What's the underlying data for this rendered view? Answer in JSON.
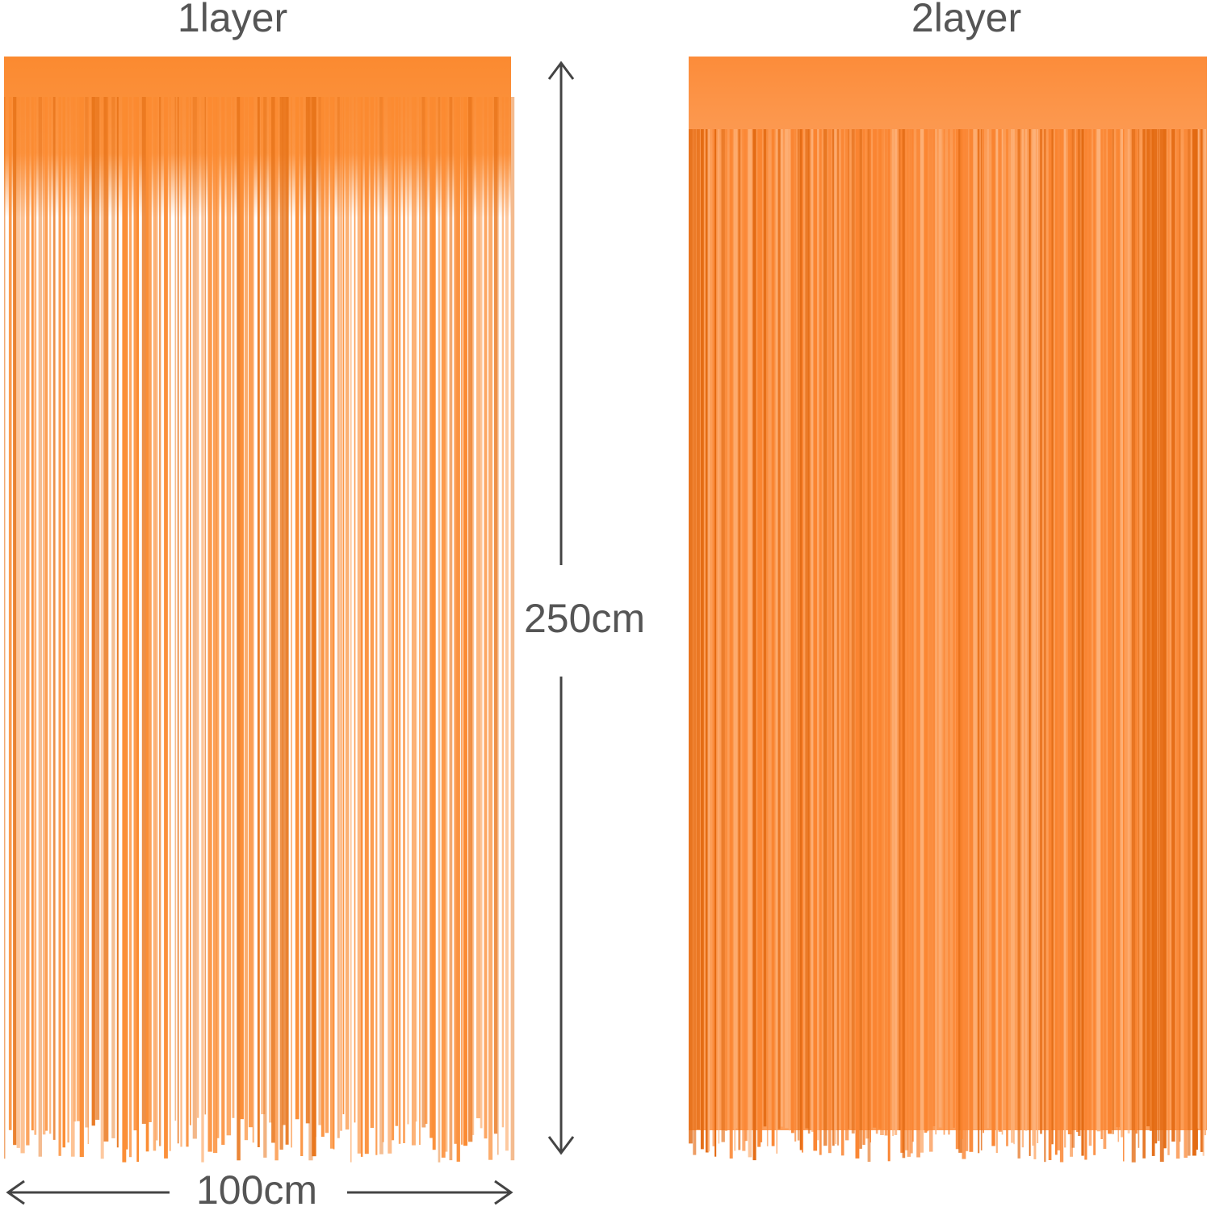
{
  "labels": {
    "left_title": "1layer",
    "right_title": "2layer",
    "height": "250cm",
    "width": "100cm"
  }
}
